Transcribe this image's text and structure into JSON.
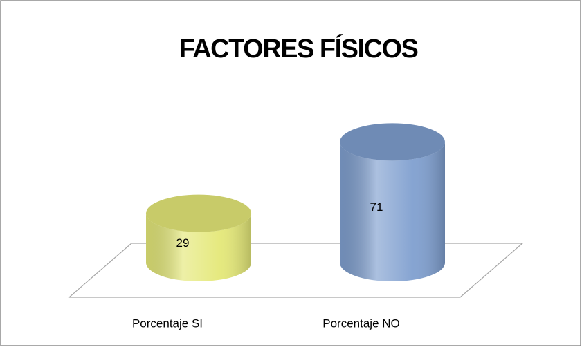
{
  "chart_data": {
    "type": "bar3d-cylinder",
    "title": "FACTORES FÍSICOS",
    "categories": [
      "Porcentaje SI",
      "Porcentaje NO"
    ],
    "values": [
      29,
      71
    ],
    "colors": [
      "#e4e878",
      "#7f9fcf"
    ]
  }
}
